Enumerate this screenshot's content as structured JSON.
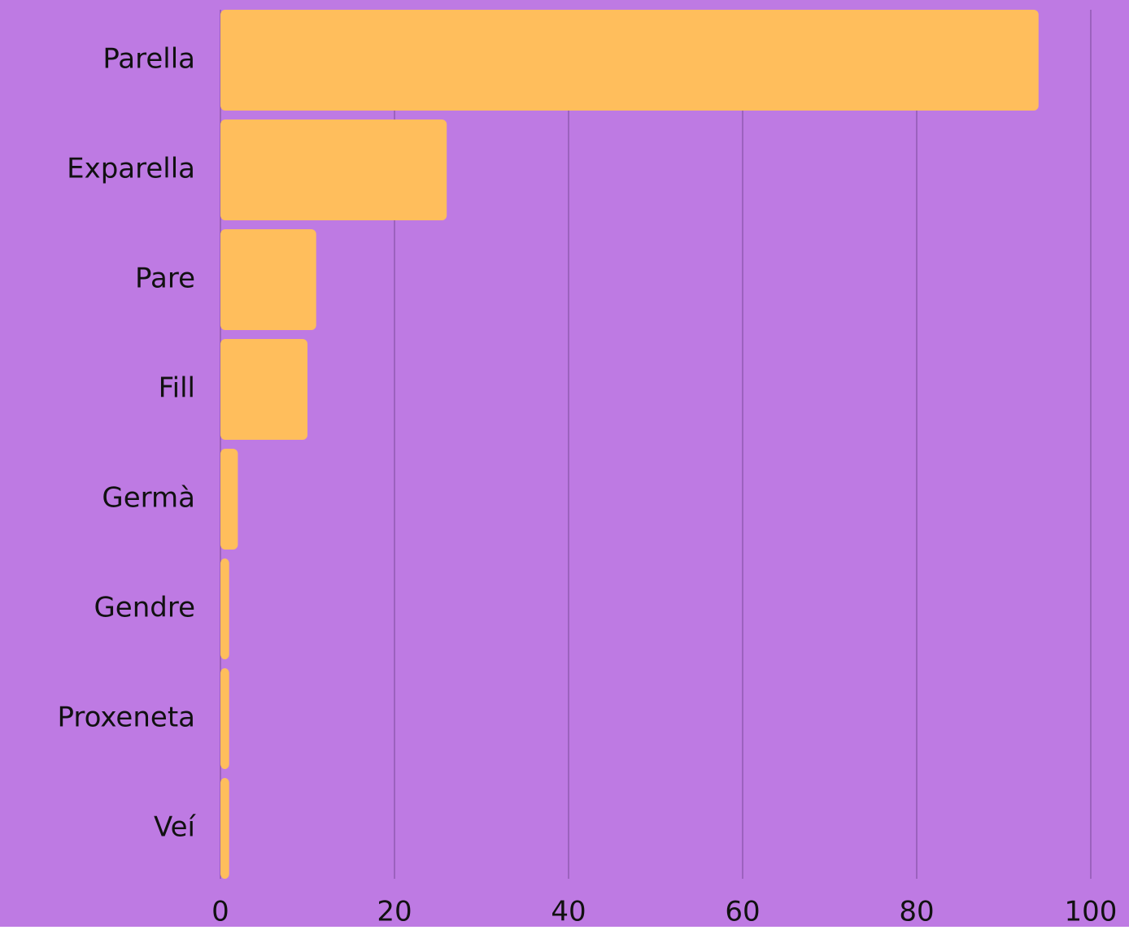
{
  "chart_data": {
    "type": "bar",
    "orientation": "horizontal",
    "categories": [
      "Parella",
      "Exparella",
      "Pare",
      "Fill",
      "Germà",
      "Gendre",
      "Proxeneta",
      "Veí"
    ],
    "values": [
      94,
      26,
      11,
      10,
      2,
      1,
      1,
      1
    ],
    "color": "#ffbe5c",
    "background": "#be7ae3",
    "xlim": [
      0,
      100
    ],
    "xticks": [
      0,
      20,
      40,
      60,
      80,
      100
    ],
    "grid": true
  }
}
